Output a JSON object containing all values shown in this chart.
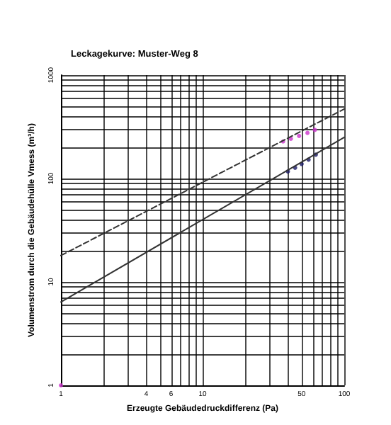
{
  "chart_data": {
    "type": "scatter",
    "title": "Leckagekurve: Muster-Weg 8",
    "xlabel": "Erzeugte Gebäudedruckdifferenz (Pa)",
    "ylabel": "Volumenstrom durch die Gebäudehülle Vmess (m³/h)",
    "log": "xy",
    "grid": true,
    "xlim": [
      1,
      100
    ],
    "ylim": [
      1,
      1000
    ],
    "xticks": [
      1,
      {
        "value": 2,
        "label": null
      },
      {
        "value": 3,
        "label": null
      },
      4,
      {
        "value": 5,
        "label": null
      },
      6,
      {
        "value": 7,
        "label": null
      },
      {
        "value": 8,
        "label": null
      },
      {
        "value": 9,
        "label": null
      },
      10,
      {
        "value": 20,
        "label": null
      },
      {
        "value": 30,
        "label": null
      },
      {
        "value": 40,
        "label": null
      },
      50,
      {
        "value": 60,
        "label": null
      },
      {
        "value": 70,
        "label": null
      },
      {
        "value": 80,
        "label": null
      },
      {
        "value": 90,
        "label": null
      },
      100
    ],
    "yticks": [
      1,
      {
        "value": 2,
        "label": null
      },
      {
        "value": 3,
        "label": null
      },
      {
        "value": 4,
        "label": null
      },
      {
        "value": 5,
        "label": null
      },
      {
        "value": 6,
        "label": null
      },
      {
        "value": 7,
        "label": null
      },
      {
        "value": 8,
        "label": null
      },
      {
        "value": 9,
        "label": null
      },
      10,
      {
        "value": 20,
        "label": null
      },
      {
        "value": 30,
        "label": null
      },
      {
        "value": 40,
        "label": null
      },
      {
        "value": 50,
        "label": null
      },
      {
        "value": 60,
        "label": null
      },
      {
        "value": 70,
        "label": null
      },
      {
        "value": 80,
        "label": null
      },
      {
        "value": 90,
        "label": null
      },
      100,
      {
        "value": 200,
        "label": null
      },
      {
        "value": 300,
        "label": null
      },
      {
        "value": 400,
        "label": null
      },
      {
        "value": 500,
        "label": null
      },
      {
        "value": 600,
        "label": null
      },
      {
        "value": 700,
        "label": null
      },
      {
        "value": 800,
        "label": null
      },
      {
        "value": 900,
        "label": null
      },
      1000
    ],
    "series": [
      {
        "type": "line",
        "color": "#333333",
        "line_style": "dashed",
        "marker": "none",
        "x": [
          1,
          100
        ],
        "values": [
          18,
          470
        ]
      },
      {
        "type": "line",
        "color": "#333333",
        "line_style": "solid",
        "marker": "none",
        "x": [
          1,
          100
        ],
        "values": [
          6.4,
          250
        ]
      },
      {
        "color": "#cc33cc",
        "marker": "circle",
        "x": [
          1,
          37,
          42,
          48,
          55,
          62
        ],
        "values": [
          1,
          228,
          242,
          258,
          276,
          295
        ]
      },
      {
        "color": "#1a1a66",
        "marker": "circle",
        "x": [
          40,
          45,
          50,
          56,
          63
        ],
        "values": [
          117,
          127,
          138,
          152,
          170
        ]
      }
    ]
  }
}
